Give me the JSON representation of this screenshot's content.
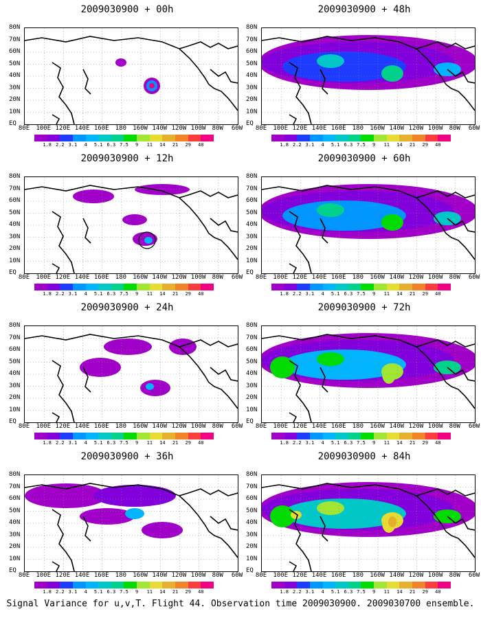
{
  "panels": [
    {
      "title": "2009030900 + 00h",
      "level": 0
    },
    {
      "title": "2009030900 + 48h",
      "level": 4
    },
    {
      "title": "2009030900 + 12h",
      "level": 1
    },
    {
      "title": "2009030900 + 60h",
      "level": 5
    },
    {
      "title": "2009030900 + 24h",
      "level": 2
    },
    {
      "title": "2009030900 + 72h",
      "level": 6
    },
    {
      "title": "2009030900 + 36h",
      "level": 3
    },
    {
      "title": "2009030900 + 84h",
      "level": 7
    }
  ],
  "axes": {
    "lat_labels": [
      "80N",
      "70N",
      "60N",
      "50N",
      "40N",
      "30N",
      "20N",
      "10N",
      "EQ"
    ],
    "lon_labels": [
      "80E",
      "100E",
      "120E",
      "140E",
      "160E",
      "180",
      "160W",
      "140W",
      "120W",
      "100W",
      "80W",
      "60W"
    ]
  },
  "colorbar": {
    "labels": [
      "1.8",
      "2.2",
      "3.1",
      "4",
      "5.1",
      "6.3",
      "7.5",
      "9",
      "11",
      "14",
      "21",
      "29",
      "40"
    ],
    "colors": [
      "#a000c8",
      "#8200dc",
      "#1e3cff",
      "#0096ff",
      "#00b4ff",
      "#00c8c8",
      "#00d28c",
      "#00dc00",
      "#a0e632",
      "#e6dc32",
      "#e6af2d",
      "#f08228",
      "#fa3c3c",
      "#f00082"
    ]
  },
  "caption": "Signal Variance for u,v,T. Flight 44. Observation time 2009030900. 2009030700 ensemble."
}
